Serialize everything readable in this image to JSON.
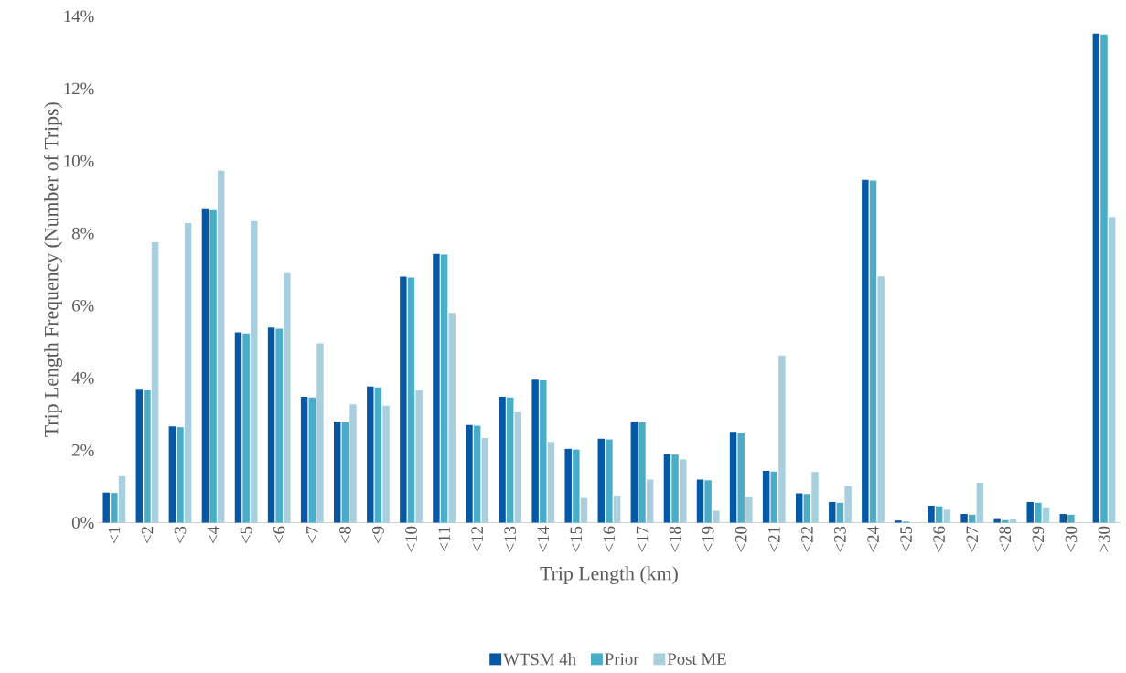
{
  "chart_data": {
    "type": "bar",
    "xlabel": "Trip Length (km)",
    "ylabel": "Trip Length Frequency (Number of Trips)",
    "categories": [
      "<1",
      "<2",
      "<3",
      "<4",
      "<5",
      "<6",
      "<7",
      "<8",
      "<9",
      "<10",
      "<11",
      "<12",
      "<13",
      "<14",
      "<15",
      "<16",
      "<17",
      "<18",
      "<19",
      "<20",
      "<21",
      "<22",
      "<23",
      "<24",
      "<25",
      "<26",
      "<27",
      "<28",
      "<29",
      "<30",
      ">30"
    ],
    "series": [
      {
        "name": "WTSM 4h",
        "color": "#0558a5",
        "values": [
          0.83,
          3.7,
          2.66,
          8.67,
          5.26,
          5.39,
          3.48,
          2.79,
          3.76,
          6.8,
          7.43,
          2.7,
          3.48,
          3.95,
          2.04,
          2.32,
          2.79,
          1.9,
          1.19,
          2.51,
          1.43,
          0.81,
          0.57,
          9.48,
          0.06,
          0.47,
          0.24,
          0.1,
          0.57,
          0.24,
          13.52
        ]
      },
      {
        "name": "Prior",
        "color": "#4aadc8",
        "values": [
          0.82,
          3.67,
          2.64,
          8.64,
          5.23,
          5.36,
          3.46,
          2.77,
          3.74,
          6.78,
          7.41,
          2.68,
          3.46,
          3.93,
          2.02,
          2.3,
          2.77,
          1.88,
          1.17,
          2.48,
          1.41,
          0.79,
          0.55,
          9.46,
          0.03,
          0.45,
          0.22,
          0.07,
          0.55,
          0.22,
          13.5
        ]
      },
      {
        "name": "Post ME",
        "color": "#a8cfdd",
        "values": [
          1.28,
          7.75,
          8.28,
          9.73,
          8.34,
          6.9,
          4.96,
          3.27,
          3.23,
          3.66,
          5.8,
          2.34,
          3.05,
          2.23,
          0.68,
          0.75,
          1.19,
          1.75,
          0.33,
          0.72,
          4.62,
          1.4,
          1.01,
          6.81,
          null,
          0.36,
          1.1,
          0.09,
          0.4,
          0,
          8.45
        ]
      }
    ],
    "ylim": [
      0,
      14
    ],
    "yticks": [
      {
        "value": 0,
        "label": "0%"
      },
      {
        "value": 2,
        "label": "2%"
      },
      {
        "value": 4,
        "label": "4%"
      },
      {
        "value": 6,
        "label": "6%"
      },
      {
        "value": 8,
        "label": "8%"
      },
      {
        "value": 10,
        "label": "10%"
      },
      {
        "value": 12,
        "label": "12%"
      },
      {
        "value": 14,
        "label": "14%"
      }
    ],
    "grid": false,
    "legend": "bottom"
  }
}
